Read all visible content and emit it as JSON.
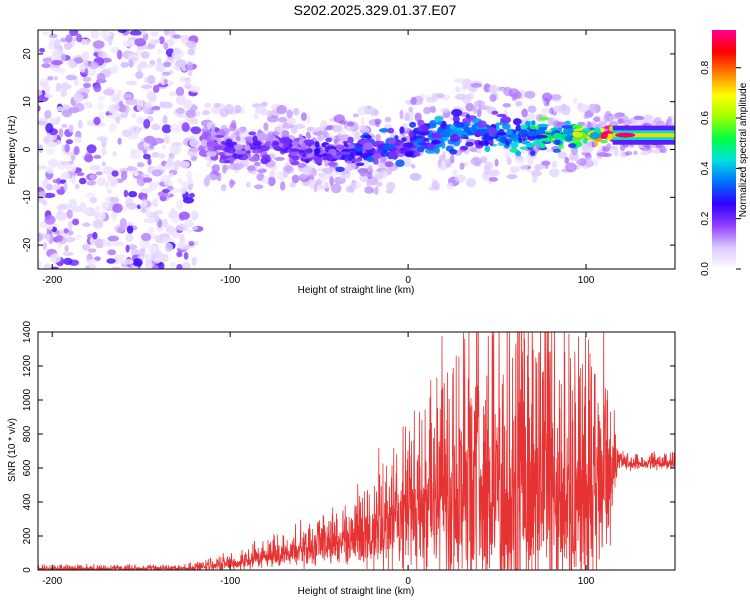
{
  "title": "S202.2025.329.01.37.E07",
  "chart_data": [
    {
      "type": "heatmap",
      "xlabel": "Height of straight line (km)",
      "ylabel": "Frequency (Hz)",
      "xlim": [
        -208,
        150
      ],
      "ylim": [
        -25,
        25
      ],
      "x_ticks": [
        -200,
        -100,
        0,
        100
      ],
      "y_ticks": [
        -20,
        -10,
        0,
        10,
        20
      ],
      "colorbar": {
        "label": "Normalized spectral amplitude",
        "range": [
          0,
          0.95
        ],
        "ticks": [
          0.0,
          0.2,
          0.4,
          0.6,
          0.8
        ],
        "colors": [
          "#ffffff",
          "#dcc8ff",
          "#9040ff",
          "#3000ff",
          "#0070ff",
          "#00e0e0",
          "#00ff40",
          "#a0ff00",
          "#ffff00",
          "#ff8000",
          "#ff0000",
          "#ff0090"
        ]
      },
      "noise_region": {
        "x": [
          -208,
          -118
        ],
        "y": [
          -25,
          25
        ],
        "amplitude": 0.15
      },
      "signal_ridge": {
        "x": [
          -115,
          -100,
          -80,
          -60,
          -40,
          -20,
          0,
          20,
          40,
          60,
          80,
          100,
          115,
          150
        ],
        "freq": [
          2,
          0,
          1,
          0,
          -1,
          0,
          1,
          3,
          4,
          3,
          3,
          3,
          3,
          3
        ],
        "halfwidth": [
          4,
          4,
          4,
          3.5,
          3.5,
          4,
          4.5,
          5,
          5,
          4.5,
          4,
          3,
          2,
          1.5
        ],
        "amplitude": [
          0.15,
          0.2,
          0.2,
          0.2,
          0.25,
          0.3,
          0.3,
          0.35,
          0.35,
          0.4,
          0.5,
          0.6,
          0.9,
          0.75
        ]
      }
    },
    {
      "type": "line",
      "xlabel": "Height of straight line (km)",
      "ylabel": "SNR (10 * v/v)",
      "xlim": [
        -208,
        150
      ],
      "ylim": [
        0,
        1400
      ],
      "x_ticks": [
        -200,
        -100,
        0,
        100
      ],
      "y_ticks": [
        0,
        200,
        400,
        600,
        800,
        1000,
        1200,
        1400
      ],
      "line_color": "#e63232",
      "series": {
        "name": "SNR",
        "x": [
          -208,
          -190,
          -170,
          -150,
          -130,
          -110,
          -95,
          -80,
          -65,
          -50,
          -35,
          -20,
          -5,
          5,
          20,
          35,
          50,
          65,
          80,
          95,
          110,
          118,
          125,
          150
        ],
        "base": [
          5,
          5,
          5,
          6,
          8,
          20,
          40,
          70,
          100,
          130,
          160,
          210,
          280,
          330,
          380,
          420,
          440,
          440,
          430,
          420,
          400,
          640,
          620,
          630
        ],
        "amplitude": [
          25,
          25,
          25,
          25,
          25,
          45,
          70,
          100,
          140,
          180,
          230,
          350,
          450,
          600,
          900,
          1000,
          1100,
          1100,
          1100,
          950,
          850,
          70,
          60,
          60
        ]
      }
    }
  ]
}
